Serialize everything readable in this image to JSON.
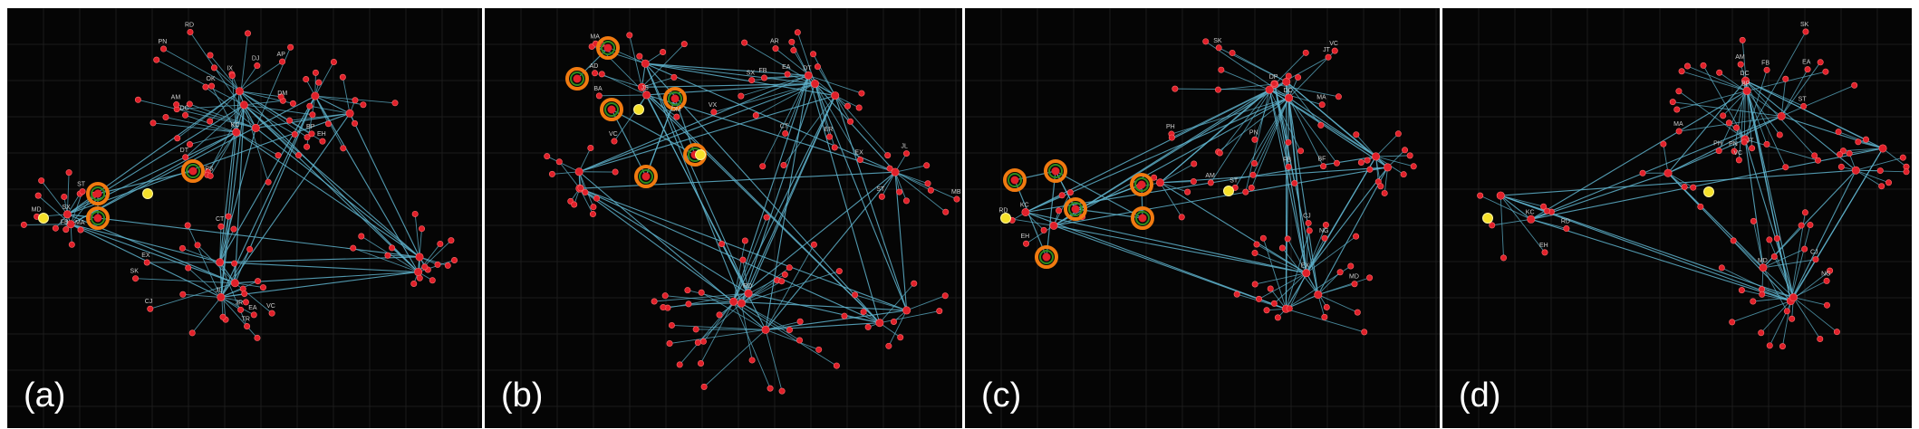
{
  "colors": {
    "background": "#050505",
    "grid": "#1c1c1c",
    "edge": "#5fb3cc",
    "node": "#e0202a",
    "node_highlight": "#f5e02a",
    "ring_outer": "#f07a10",
    "ring_inner": "#2e8b1e",
    "node_label": "#cfcfcf",
    "panel_label": "#ffffff"
  },
  "panels": [
    {
      "id": "a",
      "label": "(a)"
    },
    {
      "id": "b",
      "label": "(b)"
    },
    {
      "id": "c",
      "label": "(c)"
    },
    {
      "id": "d",
      "label": "(d)"
    }
  ],
  "node_labels": {
    "a": [
      "KC",
      "EH",
      "RD",
      "BP",
      "IX",
      "AP",
      "DT",
      "DC",
      "PN",
      "OK",
      "PS",
      "DJ",
      "DM",
      "AM",
      "SX",
      "MA",
      "FB",
      "ST",
      "MD",
      "JL",
      "CJ",
      "CT",
      "TR",
      "JR",
      "EA",
      "SK",
      "VC",
      "EX"
    ],
    "b": [
      "JS",
      "AD",
      "DM",
      "VC",
      "BA",
      "MA",
      "DT",
      "ER",
      "EX",
      "VX",
      "SX",
      "AR",
      "CT",
      "FB",
      "EA",
      "MB",
      "ST",
      "JL",
      "RD"
    ],
    "c": [
      "KC",
      "EH",
      "RD",
      "DP",
      "DC",
      "PN",
      "BF",
      "AM",
      "SK",
      "MA",
      "FB",
      "JT",
      "ST",
      "PH",
      "VC",
      "EX",
      "MD",
      "CJ",
      "NG"
    ],
    "d": [
      "KC",
      "EH",
      "RD",
      "BP",
      "DC",
      "PN",
      "AM",
      "SK",
      "MA",
      "FB",
      "JT",
      "PH",
      "VC",
      "ST",
      "EA",
      "MD",
      "CJ",
      "NG"
    ]
  }
}
